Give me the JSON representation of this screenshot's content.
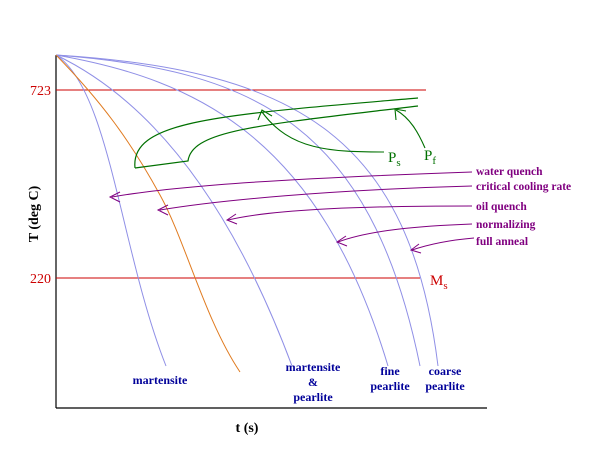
{
  "colors": {
    "axis": "#000000",
    "temp_line": "#cc0000",
    "cooling_curve": "#8f8fe6",
    "critical_curve": "#e07b20",
    "transformation_curve": "#007000",
    "arrow": "#800080",
    "region_label": "#000099"
  },
  "axes": {
    "y_label": "T (deg C)",
    "x_label": "t (s)",
    "y_ticks": [
      "723",
      "220"
    ]
  },
  "reference_lines": [
    {
      "temp": "723"
    },
    {
      "temp": "220",
      "label": "M",
      "label_sub": "s"
    }
  ],
  "transformation_labels": [
    {
      "main": "P",
      "sub": "s"
    },
    {
      "main": "P",
      "sub": "f"
    }
  ],
  "cooling_labels": [
    "water quench",
    "critical cooling rate",
    "oil quench",
    "normalizing",
    "full anneal"
  ],
  "region_labels": [
    {
      "lines": [
        "martensite"
      ]
    },
    {
      "lines": [
        "martensite",
        "&",
        "pearlite"
      ]
    },
    {
      "lines": [
        "fine",
        "pearlite"
      ]
    },
    {
      "lines": [
        "coarse",
        "pearlite"
      ]
    }
  ]
}
